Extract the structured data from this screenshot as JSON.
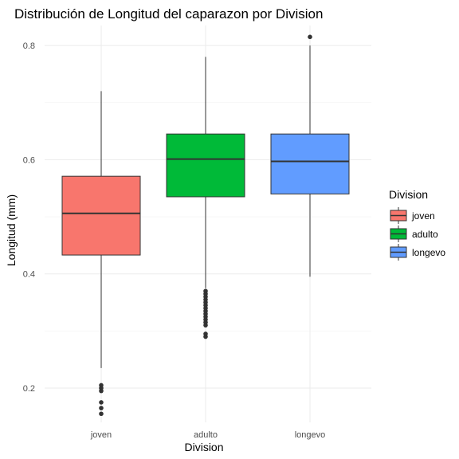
{
  "chart_data": {
    "type": "box",
    "title": "Distribución de Longitud del caparazon por Division",
    "xlabel": "Division",
    "ylabel": "Longitud (mm)",
    "categories": [
      "joven",
      "adulto",
      "longevo"
    ],
    "ylim": [
      0.14,
      0.835
    ],
    "yticks": [
      0.2,
      0.4,
      0.6,
      0.8
    ],
    "ytick_labels": [
      "0.2",
      "0.4",
      "0.6",
      "0.8"
    ],
    "grid": true,
    "legend": {
      "title": "Division",
      "position": "right",
      "entries": [
        "joven",
        "adulto",
        "longevo"
      ]
    },
    "colors": [
      "#F8766D",
      "#00BA38",
      "#619CFF"
    ],
    "series": [
      {
        "category": "joven",
        "whisker_low": 0.235,
        "q1": 0.433,
        "median": 0.506,
        "q3": 0.571,
        "whisker_high": 0.72,
        "outliers": [
          0.155,
          0.165,
          0.175,
          0.195,
          0.2,
          0.205
        ]
      },
      {
        "category": "adulto",
        "whisker_low": 0.375,
        "q1": 0.535,
        "median": 0.601,
        "q3": 0.645,
        "whisker_high": 0.78,
        "outliers": [
          0.29,
          0.295,
          0.31,
          0.315,
          0.32,
          0.325,
          0.33,
          0.335,
          0.34,
          0.345,
          0.35,
          0.355,
          0.36,
          0.365,
          0.37
        ]
      },
      {
        "category": "longevo",
        "whisker_low": 0.395,
        "q1": 0.54,
        "median": 0.597,
        "q3": 0.645,
        "whisker_high": 0.8,
        "outliers": [
          0.815
        ]
      }
    ]
  }
}
